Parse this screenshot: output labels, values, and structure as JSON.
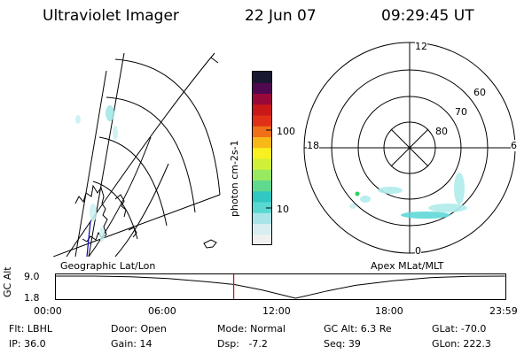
{
  "header": {
    "instrument": "Ultraviolet Imager",
    "date": "22 Jun 07",
    "time": "09:29:45 UT"
  },
  "colorbar": {
    "label": "photon cm-2s-1",
    "ticks": [
      "100",
      "10"
    ],
    "colors": [
      "#f0f0f0",
      "#d8eef0",
      "#a8e4e8",
      "#58d8d0",
      "#30c8c0",
      "#60d890",
      "#98e860",
      "#d0f038",
      "#f8f020",
      "#f8b818",
      "#f07018",
      "#e03018",
      "#c81818",
      "#980838",
      "#500850",
      "#181830"
    ]
  },
  "map_labels": {
    "geographic": "Geographic Lat/Lon",
    "apex": "Apex MLat/MLT"
  },
  "polar": {
    "mlt_labels": [
      "12",
      "18",
      "6",
      "0"
    ],
    "mlat_labels": [
      "60",
      "70",
      "80"
    ]
  },
  "chart_data": {
    "type": "line",
    "title": "",
    "ylabel": "GC Alt",
    "yticks": [
      "9.0",
      "1.8"
    ],
    "ylim": [
      1.8,
      9.0
    ],
    "xticks": [
      "00:00",
      "06:00",
      "12:00",
      "18:00",
      "23:59"
    ],
    "x_hours": [
      0,
      2,
      4,
      6,
      8,
      9.5,
      11,
      12.8,
      14.5,
      16,
      18,
      20,
      22,
      23.98
    ],
    "y_re": [
      9.0,
      9.0,
      8.8,
      8.2,
      7.2,
      6.3,
      4.5,
      1.8,
      4.2,
      6.0,
      7.5,
      8.5,
      8.9,
      9.0
    ],
    "current_time_hours": 9.496
  },
  "footer": {
    "rows": [
      [
        "Flt: LBHL",
        "Door: Open",
        "Mode: Normal",
        "GC Alt: 6.3 Re",
        "GLat: -70.0"
      ],
      [
        "IP: 36.0",
        "Gain: 14",
        "Dsp:   -7.2",
        "Seq: 39",
        "GLon: 222.3"
      ]
    ]
  }
}
